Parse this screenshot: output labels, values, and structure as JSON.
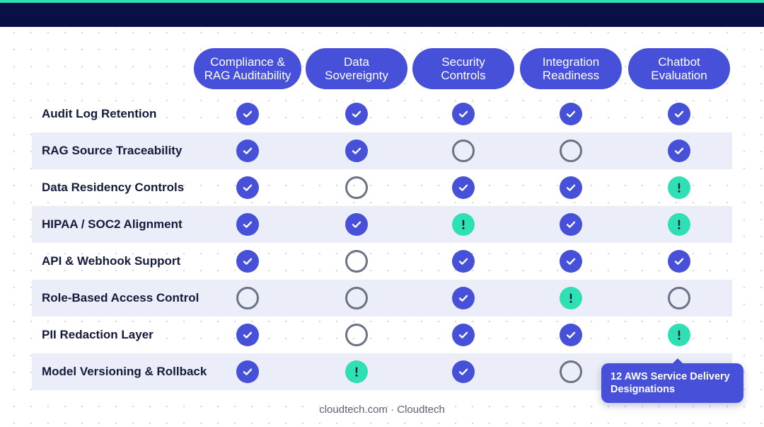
{
  "columns": [
    [
      "Compliance &",
      "RAG Auditability"
    ],
    [
      "Data",
      "Sovereignty"
    ],
    [
      "Security",
      "Controls"
    ],
    [
      "Integration",
      "Readiness"
    ],
    [
      "Chatbot",
      "Evaluation"
    ]
  ],
  "rows": [
    {
      "label": "Audit Log Retention",
      "cells": [
        "check",
        "check",
        "check",
        "check",
        "check"
      ]
    },
    {
      "label": "RAG Source Traceability",
      "cells": [
        "check",
        "check",
        "empty",
        "empty",
        "check"
      ]
    },
    {
      "label": "Data Residency Controls",
      "cells": [
        "check",
        "empty",
        "check",
        "check",
        "warning"
      ]
    },
    {
      "label": "HIPAA / SOC2 Alignment",
      "cells": [
        "check",
        "check",
        "warning",
        "check",
        "warning"
      ]
    },
    {
      "label": "API & Webhook Support",
      "cells": [
        "check",
        "empty",
        "check",
        "check",
        "check"
      ]
    },
    {
      "label": "Role-Based Access Control",
      "cells": [
        "empty",
        "empty",
        "check",
        "warning",
        "empty"
      ]
    },
    {
      "label": "PII Redaction Layer",
      "cells": [
        "check",
        "empty",
        "check",
        "check",
        "warning"
      ]
    },
    {
      "label": "Model Versioning & Rollback",
      "cells": [
        "check",
        "warning",
        "check",
        "empty",
        null
      ]
    }
  ],
  "badge": {
    "line1": "12 AWS Service Delivery",
    "line2": "Designations"
  },
  "footer": "cloudtech.com · Cloudtech",
  "icons": {
    "check": "check-circle-icon",
    "empty": "empty-circle-icon",
    "warning": "exclamation-circle-icon"
  },
  "colors": {
    "accent": "#2fe0b4",
    "header_bar": "#0a1045",
    "primary": "#4650d8",
    "row_shade": "#ebedf8",
    "text": "#141a3c"
  }
}
